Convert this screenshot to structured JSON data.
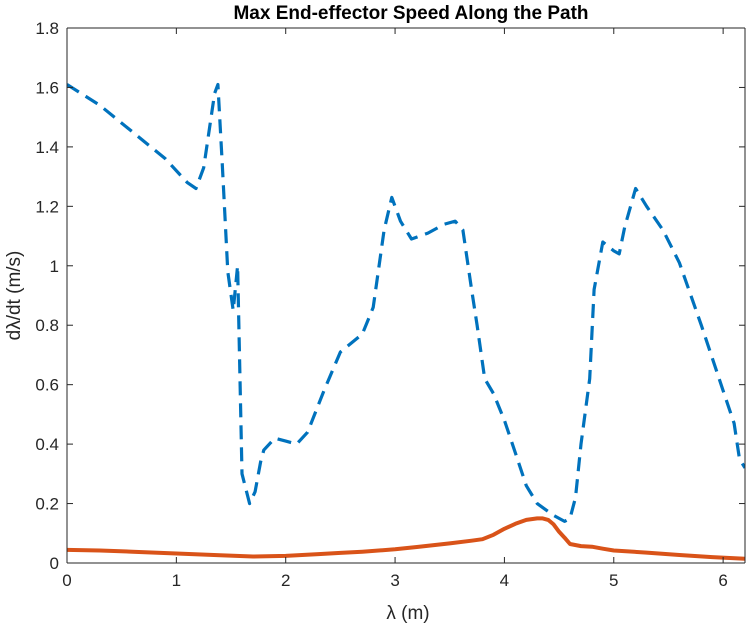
{
  "chart_data": {
    "type": "line",
    "title": "Max End-effector Speed Along the Path",
    "xlabel": "λ (m)",
    "ylabel": "dλ/dt  (m/s)",
    "xlim": [
      0,
      6.2
    ],
    "ylim": [
      0,
      1.8
    ],
    "xticks": [
      0,
      1,
      2,
      3,
      4,
      5,
      6
    ],
    "yticks": [
      0,
      0.2,
      0.4,
      0.6,
      0.8,
      1,
      1.2,
      1.4,
      1.6,
      1.8
    ],
    "xtick_labels": [
      "0",
      "1",
      "2",
      "3",
      "4",
      "5",
      "6"
    ],
    "ytick_labels": [
      "0",
      "0.2",
      "0.4",
      "0.6",
      "0.8",
      "1",
      "1.2",
      "1.4",
      "1.6",
      "1.8"
    ],
    "grid": false,
    "box": true,
    "series": [
      {
        "style": "dashed",
        "color": "#0072BD",
        "x": [
          0,
          0.3,
          0.6,
          0.9,
          1.1,
          1.18,
          1.25,
          1.35,
          1.38,
          1.42,
          1.47,
          1.52,
          1.56,
          1.6,
          1.67,
          1.72,
          1.77,
          1.8,
          1.9,
          2.0,
          2.1,
          2.2,
          2.35,
          2.5,
          2.7,
          2.8,
          2.9,
          2.97,
          3.05,
          3.15,
          3.3,
          3.45,
          3.55,
          3.62,
          3.7,
          3.75,
          3.82,
          3.9,
          4.0,
          4.1,
          4.2,
          4.3,
          4.45,
          4.55,
          4.6,
          4.65,
          4.7,
          4.78,
          4.82,
          4.9,
          5.0,
          5.05,
          5.1,
          5.2,
          5.3,
          5.45,
          5.6,
          5.8,
          6.0,
          6.1,
          6.15,
          6.2
        ],
        "y": [
          1.61,
          1.54,
          1.45,
          1.36,
          1.28,
          1.26,
          1.33,
          1.58,
          1.61,
          1.34,
          0.98,
          0.85,
          1.0,
          0.3,
          0.2,
          0.24,
          0.34,
          0.38,
          0.42,
          0.41,
          0.4,
          0.44,
          0.58,
          0.71,
          0.77,
          0.86,
          1.12,
          1.23,
          1.15,
          1.09,
          1.11,
          1.14,
          1.15,
          1.12,
          0.92,
          0.8,
          0.62,
          0.57,
          0.48,
          0.37,
          0.26,
          0.2,
          0.16,
          0.14,
          0.15,
          0.22,
          0.4,
          0.62,
          0.92,
          1.08,
          1.05,
          1.04,
          1.13,
          1.26,
          1.2,
          1.12,
          1.01,
          0.8,
          0.58,
          0.47,
          0.35,
          0.32
        ]
      },
      {
        "style": "solid",
        "color": "#D95319",
        "x": [
          0,
          0.3,
          0.6,
          1.0,
          1.4,
          1.7,
          2.0,
          2.3,
          2.5,
          2.7,
          3.0,
          3.2,
          3.5,
          3.7,
          3.8,
          3.9,
          4.0,
          4.1,
          4.2,
          4.3,
          4.35,
          4.4,
          4.45,
          4.5,
          4.55,
          4.6,
          4.7,
          4.8,
          4.9,
          5.0,
          5.3,
          5.6,
          5.9,
          6.2
        ],
        "y": [
          0.044,
          0.042,
          0.038,
          0.032,
          0.026,
          0.022,
          0.024,
          0.03,
          0.034,
          0.038,
          0.046,
          0.054,
          0.066,
          0.075,
          0.08,
          0.095,
          0.115,
          0.132,
          0.145,
          0.15,
          0.15,
          0.145,
          0.13,
          0.105,
          0.085,
          0.064,
          0.057,
          0.055,
          0.048,
          0.042,
          0.035,
          0.027,
          0.02,
          0.014
        ]
      }
    ]
  }
}
